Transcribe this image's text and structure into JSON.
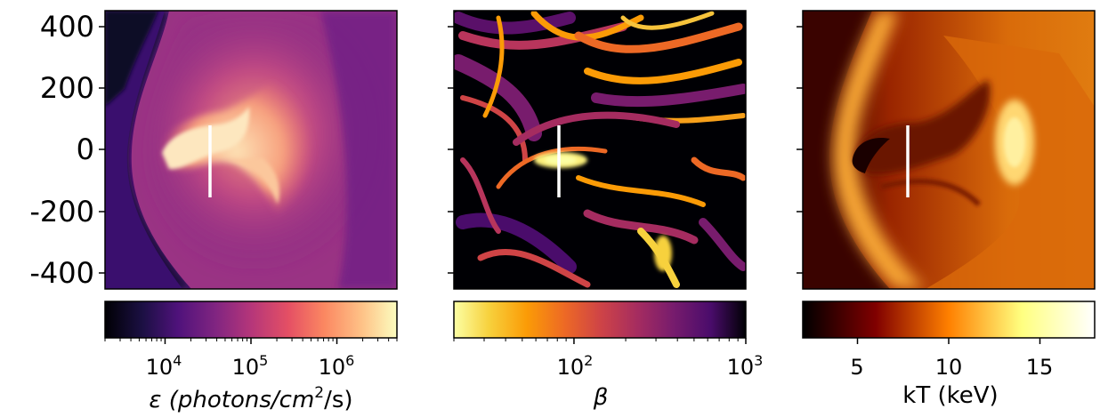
{
  "chart_data": [
    {
      "type": "heatmap",
      "panel": "left",
      "ylim": [
        -450,
        450
      ],
      "yticks": [
        400,
        200,
        0,
        -200,
        -400
      ],
      "ytick_labels": [
        "400",
        "200",
        "0",
        "-200",
        "-400"
      ],
      "colormap": "magma",
      "colorbar": {
        "scale": "log",
        "range": [
          2000,
          5000000
        ],
        "major_ticks": [
          10000,
          100000,
          1000000
        ],
        "tick_labels": [
          {
            "base": "10",
            "exp": "4"
          },
          {
            "base": "10",
            "exp": "5"
          },
          {
            "base": "10",
            "exp": "6"
          }
        ],
        "label": {
          "pre": "ε (photons/cm",
          "sup": "2",
          "post": "/s)"
        }
      },
      "annotation": {
        "type": "vertical-line",
        "color": "#ffffff",
        "y_range": [
          -150,
          80
        ]
      }
    },
    {
      "type": "heatmap",
      "panel": "middle",
      "colormap": "inferno_r",
      "colorbar": {
        "scale": "log",
        "range": [
          20,
          1000
        ],
        "major_ticks": [
          100,
          1000
        ],
        "tick_labels": [
          {
            "base": "10",
            "exp": "2"
          },
          {
            "base": "10",
            "exp": "3"
          }
        ],
        "label": {
          "pre": "β",
          "sup": "",
          "post": ""
        }
      },
      "annotation": {
        "type": "vertical-line",
        "color": "#ffffff",
        "y_range": [
          -150,
          80
        ]
      }
    },
    {
      "type": "heatmap",
      "panel": "right",
      "colormap": "afmhot",
      "colorbar": {
        "scale": "linear",
        "range": [
          2,
          18
        ],
        "major_ticks": [
          5,
          10,
          15
        ],
        "tick_labels": [
          "5",
          "10",
          "15"
        ],
        "label": {
          "pre": "kT (keV)",
          "sup": "",
          "post": ""
        }
      },
      "annotation": {
        "type": "vertical-line",
        "color": "#ffffff",
        "y_range": [
          -150,
          80
        ]
      }
    }
  ]
}
